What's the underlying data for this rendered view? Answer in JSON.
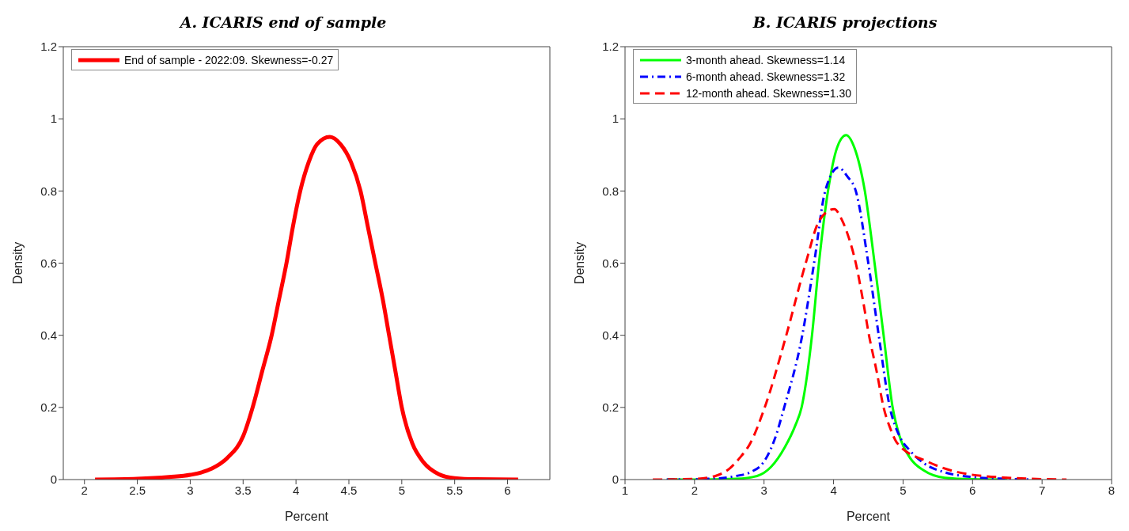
{
  "chart_data": [
    {
      "type": "line",
      "title": "A. ICARIS end of sample",
      "xlabel": "Percent",
      "ylabel": "Density",
      "xlim": [
        1.8,
        6.4
      ],
      "xticks": [
        2,
        2.5,
        3,
        3.5,
        4,
        4.5,
        5,
        5.5,
        6
      ],
      "ylim": [
        0,
        1.2
      ],
      "yticks": [
        0,
        0.2,
        0.4,
        0.6,
        0.8,
        1,
        1.2
      ],
      "grid": false,
      "legend": "top left",
      "marker": "none",
      "series": [
        {
          "name": "End of sample - 2022:09. Skewness=-0.27",
          "color": "#ff0000",
          "line_style": "solid",
          "x": [
            2.1,
            2.5,
            2.8,
            3.0,
            3.2,
            3.35,
            3.5,
            3.59,
            3.68,
            3.77,
            3.84,
            3.91,
            3.97,
            4.04,
            4.12,
            4.2,
            4.32,
            4.42,
            4.52,
            4.61,
            4.68,
            4.75,
            4.82,
            4.88,
            4.94,
            5.0,
            5.1,
            5.2,
            5.35,
            5.5,
            5.7,
            6.1
          ],
          "values": [
            0,
            0.002,
            0.007,
            0.013,
            0.03,
            0.06,
            0.12,
            0.2,
            0.3,
            0.4,
            0.5,
            0.6,
            0.7,
            0.8,
            0.88,
            0.93,
            0.95,
            0.93,
            0.88,
            0.8,
            0.7,
            0.6,
            0.5,
            0.4,
            0.3,
            0.2,
            0.1,
            0.05,
            0.015,
            0.004,
            0.001,
            0
          ]
        }
      ]
    },
    {
      "type": "line",
      "title": "B. ICARIS projections",
      "xlabel": "Percent",
      "ylabel": "Density",
      "xlim": [
        1,
        8
      ],
      "xticks": [
        1,
        2,
        3,
        4,
        5,
        6,
        7,
        8
      ],
      "ylim": [
        0,
        1.2
      ],
      "yticks": [
        0,
        0.2,
        0.4,
        0.6,
        0.8,
        1,
        1.2
      ],
      "grid": false,
      "legend": "top left",
      "marker": "none",
      "series": [
        {
          "name": "3-month ahead. Skewness=1.14",
          "color": "#00ff00",
          "line_style": "solid",
          "x": [
            1.6,
            2.0,
            2.6,
            2.9,
            3.1,
            3.3,
            3.45,
            3.54,
            3.69,
            3.79,
            3.92,
            4.05,
            4.18,
            4.3,
            4.45,
            4.59,
            4.72,
            4.85,
            4.95,
            5.1,
            5.3,
            5.6,
            6.0,
            6.5
          ],
          "values": [
            0,
            0,
            0.002,
            0.01,
            0.035,
            0.09,
            0.15,
            0.2,
            0.4,
            0.6,
            0.8,
            0.92,
            0.955,
            0.92,
            0.8,
            0.6,
            0.4,
            0.2,
            0.12,
            0.06,
            0.025,
            0.005,
            0.001,
            0
          ]
        },
        {
          "name": "6-month ahead. Skewness=1.32",
          "color": "#0000ff",
          "line_style": "dashdot",
          "x": [
            1.6,
            2.2,
            2.6,
            2.8,
            3.0,
            3.15,
            3.29,
            3.55,
            3.72,
            3.88,
            4.07,
            4.2,
            4.32,
            4.5,
            4.65,
            4.81,
            4.95,
            5.1,
            5.3,
            5.6,
            6.0,
            6.5,
            7.0
          ],
          "values": [
            0,
            0.002,
            0.01,
            0.02,
            0.05,
            0.11,
            0.2,
            0.4,
            0.6,
            0.8,
            0.865,
            0.84,
            0.8,
            0.6,
            0.4,
            0.2,
            0.12,
            0.08,
            0.045,
            0.02,
            0.007,
            0.002,
            0
          ]
        },
        {
          "name": "12-month ahead. Skewness=1.30",
          "color": "#ff0000",
          "line_style": "dashed",
          "x": [
            1.4,
            2.0,
            2.3,
            2.5,
            2.65,
            2.8,
            3.01,
            3.32,
            3.6,
            3.8,
            4.01,
            4.12,
            4.22,
            4.32,
            4.42,
            4.51,
            4.62,
            4.72,
            4.82,
            4.92,
            5.35,
            5.8,
            6.5,
            7.35
          ],
          "values": [
            0,
            0.002,
            0.01,
            0.03,
            0.06,
            0.1,
            0.2,
            0.4,
            0.6,
            0.72,
            0.75,
            0.72,
            0.67,
            0.6,
            0.5,
            0.4,
            0.3,
            0.2,
            0.14,
            0.1,
            0.05,
            0.02,
            0.005,
            0
          ]
        }
      ]
    }
  ]
}
